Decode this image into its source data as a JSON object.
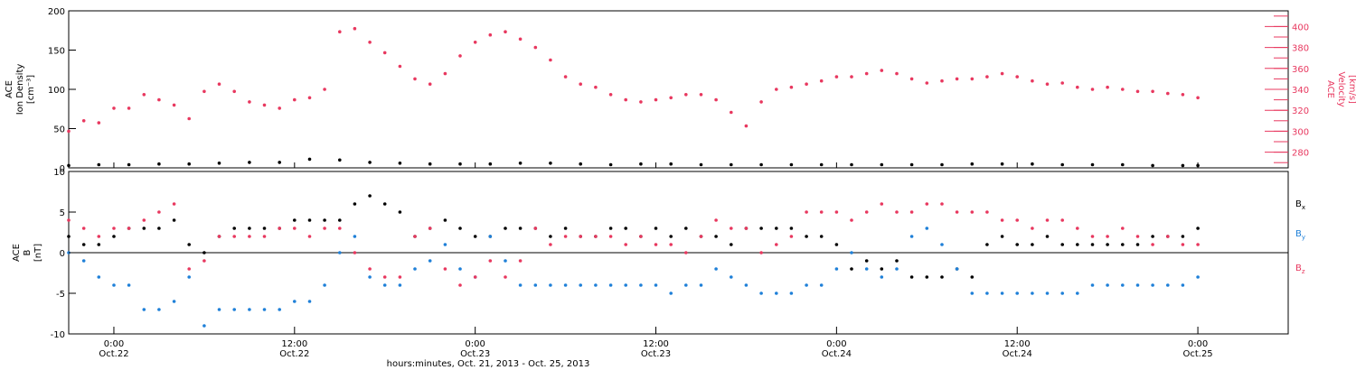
{
  "colors": {
    "density": "#000000",
    "velocity": "#e8385f",
    "bx": "#000000",
    "by": "#1f80d8",
    "bz": "#e8385f"
  },
  "chart_data": [
    {
      "type": "scatter",
      "panel": "top",
      "ylabel_lines": [
        "ACE",
        "Ion Density",
        "[cm⁻³]"
      ],
      "y2label_lines": [
        "ACE",
        "Velocity",
        "[km/s]"
      ],
      "ylim": [
        0,
        200
      ],
      "yticks": [
        0,
        50,
        100,
        150,
        200
      ],
      "y2lim": [
        265,
        415
      ],
      "y2ticks": [
        280,
        300,
        320,
        340,
        360,
        380,
        400
      ],
      "x_unit": "hours since Oct.21 21:00",
      "series": [
        {
          "id": "density",
          "axis": "left",
          "x": [
            0,
            2,
            4,
            6,
            8,
            10,
            12,
            14,
            16,
            18,
            20,
            22,
            24,
            26,
            28,
            30,
            32,
            34,
            36,
            38,
            40,
            42,
            44,
            46,
            48,
            50,
            52,
            54,
            56,
            58,
            60,
            62,
            64,
            66,
            68,
            70,
            72,
            74,
            75
          ],
          "values": [
            3,
            4,
            4,
            5,
            5,
            6,
            7,
            7,
            11,
            10,
            7,
            6,
            5,
            5,
            5,
            6,
            6,
            5,
            4,
            5,
            5,
            4,
            4,
            4,
            4,
            4,
            4,
            4,
            4,
            4,
            5,
            5,
            5,
            4,
            4,
            4,
            3,
            3,
            3
          ]
        },
        {
          "id": "velocity",
          "axis": "right",
          "x": [
            0,
            1,
            2,
            3,
            4,
            5,
            6,
            7,
            8,
            9,
            10,
            11,
            12,
            13,
            14,
            15,
            16,
            17,
            18,
            19,
            20,
            21,
            22,
            23,
            24,
            25,
            26,
            27,
            28,
            29,
            30,
            31,
            32,
            33,
            34,
            35,
            36,
            37,
            38,
            39,
            40,
            41,
            42,
            43,
            44,
            45,
            46,
            47,
            48,
            49,
            50,
            51,
            52,
            53,
            54,
            55,
            56,
            57,
            58,
            59,
            60,
            61,
            62,
            63,
            64,
            65,
            66,
            67,
            68,
            69,
            70,
            71,
            72,
            73,
            74,
            75
          ],
          "values": [
            300,
            310,
            308,
            322,
            322,
            335,
            330,
            325,
            312,
            338,
            345,
            338,
            328,
            325,
            322,
            330,
            332,
            340,
            395,
            398,
            385,
            375,
            362,
            350,
            345,
            355,
            372,
            385,
            392,
            395,
            388,
            380,
            368,
            352,
            345,
            342,
            335,
            330,
            328,
            330,
            332,
            335,
            335,
            330,
            318,
            305,
            328,
            340,
            342,
            345,
            348,
            352,
            352,
            355,
            358,
            355,
            350,
            346,
            348,
            350,
            350,
            352,
            355,
            352,
            348,
            345,
            346,
            342,
            340,
            342,
            340,
            338,
            338,
            336,
            335,
            332
          ]
        }
      ]
    },
    {
      "type": "scatter",
      "panel": "bottom",
      "ylabel_lines": [
        "ACE",
        "B",
        "[nT]"
      ],
      "ylim": [
        -10,
        10
      ],
      "yticks": [
        -10,
        -5,
        0,
        5,
        10
      ],
      "x_unit": "hours since Oct.21 21:00",
      "series": [
        {
          "id": "bx",
          "name": "B",
          "sub": "x",
          "x": [
            0,
            1,
            2,
            3,
            4,
            5,
            6,
            7,
            8,
            9,
            10,
            11,
            12,
            13,
            14,
            15,
            16,
            17,
            18,
            19,
            20,
            21,
            22,
            23,
            24,
            25,
            26,
            27,
            28,
            29,
            30,
            31,
            32,
            33,
            34,
            35,
            36,
            37,
            38,
            39,
            40,
            41,
            42,
            43,
            44,
            45,
            46,
            47,
            48,
            49,
            50,
            51,
            52,
            53,
            54,
            55,
            56,
            57,
            58,
            59,
            60,
            61,
            62,
            63,
            64,
            65,
            66,
            67,
            68,
            69,
            70,
            71,
            72,
            73,
            74,
            75
          ],
          "values": [
            2,
            1,
            1,
            2,
            3,
            3,
            3,
            4,
            1,
            0,
            2,
            3,
            3,
            3,
            3,
            4,
            4,
            4,
            4,
            6,
            7,
            6,
            5,
            2,
            3,
            4,
            3,
            2,
            2,
            3,
            3,
            3,
            2,
            3,
            2,
            2,
            3,
            3,
            2,
            3,
            2,
            3,
            2,
            2,
            1,
            3,
            3,
            3,
            3,
            2,
            2,
            1,
            -2,
            -1,
            -2,
            -1,
            -3,
            -3,
            -3,
            -2,
            -3,
            1,
            2,
            1,
            1,
            2,
            1,
            1,
            1,
            1,
            1,
            1,
            2,
            2,
            2,
            3
          ]
        },
        {
          "id": "by",
          "name": "B",
          "sub": "y",
          "x": [
            0,
            1,
            2,
            3,
            4,
            5,
            6,
            7,
            8,
            9,
            10,
            11,
            12,
            13,
            14,
            15,
            16,
            17,
            18,
            19,
            20,
            21,
            22,
            23,
            24,
            25,
            26,
            27,
            28,
            29,
            30,
            31,
            32,
            33,
            34,
            35,
            36,
            37,
            38,
            39,
            40,
            41,
            42,
            43,
            44,
            45,
            46,
            47,
            48,
            49,
            50,
            51,
            52,
            53,
            54,
            55,
            56,
            57,
            58,
            59,
            60,
            61,
            62,
            63,
            64,
            65,
            66,
            67,
            68,
            69,
            70,
            71,
            72,
            73,
            74,
            75
          ],
          "values": [
            0,
            -1,
            -3,
            -4,
            -4,
            -7,
            -7,
            -6,
            -3,
            -9,
            -7,
            -7,
            -7,
            -7,
            -7,
            -6,
            -6,
            -4,
            0,
            2,
            -3,
            -4,
            -4,
            -2,
            -1,
            1,
            -2,
            -3,
            2,
            -1,
            -4,
            -4,
            -4,
            -4,
            -4,
            -4,
            -4,
            -4,
            -4,
            -4,
            -5,
            -4,
            -4,
            -2,
            -3,
            -4,
            -5,
            -5,
            -5,
            -4,
            -4,
            -2,
            0,
            -2,
            -3,
            -2,
            2,
            3,
            1,
            -2,
            -5,
            -5,
            -5,
            -5,
            -5,
            -5,
            -5,
            -5,
            -4,
            -4,
            -4,
            -4,
            -4,
            -4,
            -4,
            -3
          ]
        },
        {
          "id": "bz",
          "name": "B",
          "sub": "z",
          "x": [
            0,
            1,
            2,
            3,
            4,
            5,
            6,
            7,
            8,
            9,
            10,
            11,
            12,
            13,
            14,
            15,
            16,
            17,
            18,
            19,
            20,
            21,
            22,
            23,
            24,
            25,
            26,
            27,
            28,
            29,
            30,
            31,
            32,
            33,
            34,
            35,
            36,
            37,
            38,
            39,
            40,
            41,
            42,
            43,
            44,
            45,
            46,
            47,
            48,
            49,
            50,
            51,
            52,
            53,
            54,
            55,
            56,
            57,
            58,
            59,
            60,
            61,
            62,
            63,
            64,
            65,
            66,
            67,
            68,
            69,
            70,
            71,
            72,
            73,
            74,
            75
          ],
          "values": [
            4,
            3,
            2,
            3,
            3,
            4,
            5,
            6,
            -2,
            -1,
            2,
            2,
            2,
            2,
            3,
            3,
            2,
            3,
            3,
            0,
            -2,
            -3,
            -3,
            2,
            3,
            -2,
            -4,
            -3,
            -1,
            -3,
            -1,
            3,
            1,
            2,
            2,
            2,
            2,
            1,
            2,
            1,
            1,
            0,
            2,
            4,
            3,
            3,
            0,
            1,
            2,
            5,
            5,
            5,
            4,
            5,
            6,
            5,
            5,
            6,
            6,
            5,
            5,
            5,
            4,
            4,
            3,
            4,
            4,
            3,
            2,
            2,
            3,
            2,
            1,
            2,
            1,
            1
          ]
        }
      ]
    }
  ],
  "x_axis": {
    "xlim": [
      0,
      81
    ],
    "ticks": [
      {
        "x": 3,
        "time": "0:00",
        "date": "Oct.22"
      },
      {
        "x": 15,
        "time": "12:00",
        "date": "Oct.22"
      },
      {
        "x": 27,
        "time": "0:00",
        "date": "Oct.23"
      },
      {
        "x": 39,
        "time": "12:00",
        "date": "Oct.23"
      },
      {
        "x": 51,
        "time": "0:00",
        "date": "Oct.24"
      },
      {
        "x": 63,
        "time": "12:00",
        "date": "Oct.24"
      },
      {
        "x": 75,
        "time": "0:00",
        "date": "Oct.25"
      }
    ],
    "label": "hours:minutes, Oct. 21, 2013 - Oct. 25, 2013"
  }
}
